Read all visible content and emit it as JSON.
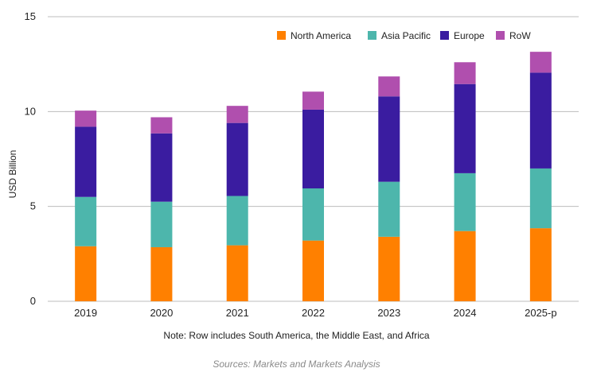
{
  "chart_data": {
    "type": "bar",
    "stacked": true,
    "categories": [
      "2019",
      "2020",
      "2021",
      "2022",
      "2023",
      "2024",
      "2025-p"
    ],
    "series": [
      {
        "name": "North America",
        "color": "#FF8000",
        "values": [
          2.9,
          2.85,
          2.95,
          3.2,
          3.4,
          3.7,
          3.85
        ]
      },
      {
        "name": "Asia Pacific",
        "color": "#4DB6AC",
        "values": [
          2.6,
          2.4,
          2.6,
          2.75,
          2.9,
          3.05,
          3.15
        ]
      },
      {
        "name": "Europe",
        "color": "#3A1CA0",
        "values": [
          3.7,
          3.6,
          3.85,
          4.15,
          4.5,
          4.7,
          5.05
        ]
      },
      {
        "name": "RoW",
        "color": "#B04FAE",
        "values": [
          0.85,
          0.85,
          0.9,
          0.95,
          1.05,
          1.15,
          1.1
        ]
      }
    ],
    "ylabel": "USD Billion",
    "ylim": [
      0,
      15
    ],
    "yticks": [
      "0",
      "5",
      "10",
      "15"
    ],
    "grid": true,
    "legend_position": "top-right"
  },
  "note": "Note: Row includes South America, the Middle East, and Africa",
  "source": "Sources: Markets and Markets Analysis"
}
